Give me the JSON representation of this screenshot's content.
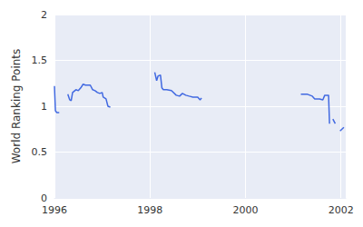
{
  "chart_data": {
    "type": "line",
    "y_label": "World Ranking Points",
    "x": [
      1996.0,
      1996.02,
      1996.05,
      1996.1,
      1996.2,
      1996.28,
      1996.32,
      1996.35,
      1996.38,
      1996.45,
      1996.5,
      1996.55,
      1996.6,
      1996.65,
      1996.75,
      1996.8,
      1996.85,
      1996.9,
      1996.95,
      1997.0,
      1997.02,
      1997.08,
      1997.12,
      1997.17,
      1997.6,
      1998.1,
      1998.14,
      1998.17,
      1998.22,
      1998.25,
      1998.28,
      1998.35,
      1998.45,
      1998.55,
      1998.62,
      1998.68,
      1998.75,
      1998.82,
      1998.9,
      1999.0,
      1999.05,
      1999.08,
      2000.0,
      2001.16,
      2001.3,
      2001.4,
      2001.45,
      2001.55,
      2001.62,
      2001.66,
      2001.74,
      2001.76,
      2001.8,
      2001.83,
      2001.88,
      2001.93,
      2001.98,
      2002.02,
      2002.06
    ],
    "values": [
      1.22,
      0.95,
      0.93,
      0.93,
      null,
      1.13,
      1.07,
      1.06,
      1.15,
      1.18,
      1.17,
      1.2,
      1.24,
      1.23,
      1.23,
      1.18,
      1.17,
      1.15,
      1.14,
      1.15,
      1.1,
      1.08,
      1.0,
      0.99,
      null,
      1.37,
      1.28,
      1.33,
      1.34,
      1.2,
      1.18,
      1.18,
      1.17,
      1.12,
      1.11,
      1.14,
      1.12,
      1.11,
      1.1,
      1.1,
      1.07,
      1.09,
      null,
      1.13,
      1.13,
      1.11,
      1.08,
      1.08,
      1.07,
      1.12,
      1.12,
      0.81,
      null,
      0.86,
      0.81,
      null,
      0.73,
      0.75,
      0.77
    ],
    "color": "#4169e1",
    "xlim": [
      1996,
      2002.1
    ],
    "xticks": [
      1996,
      1998,
      2000,
      2002
    ],
    "ylim": [
      0,
      2
    ],
    "yticks": [
      0,
      0.5,
      1,
      1.5,
      2
    ],
    "grid": true
  }
}
